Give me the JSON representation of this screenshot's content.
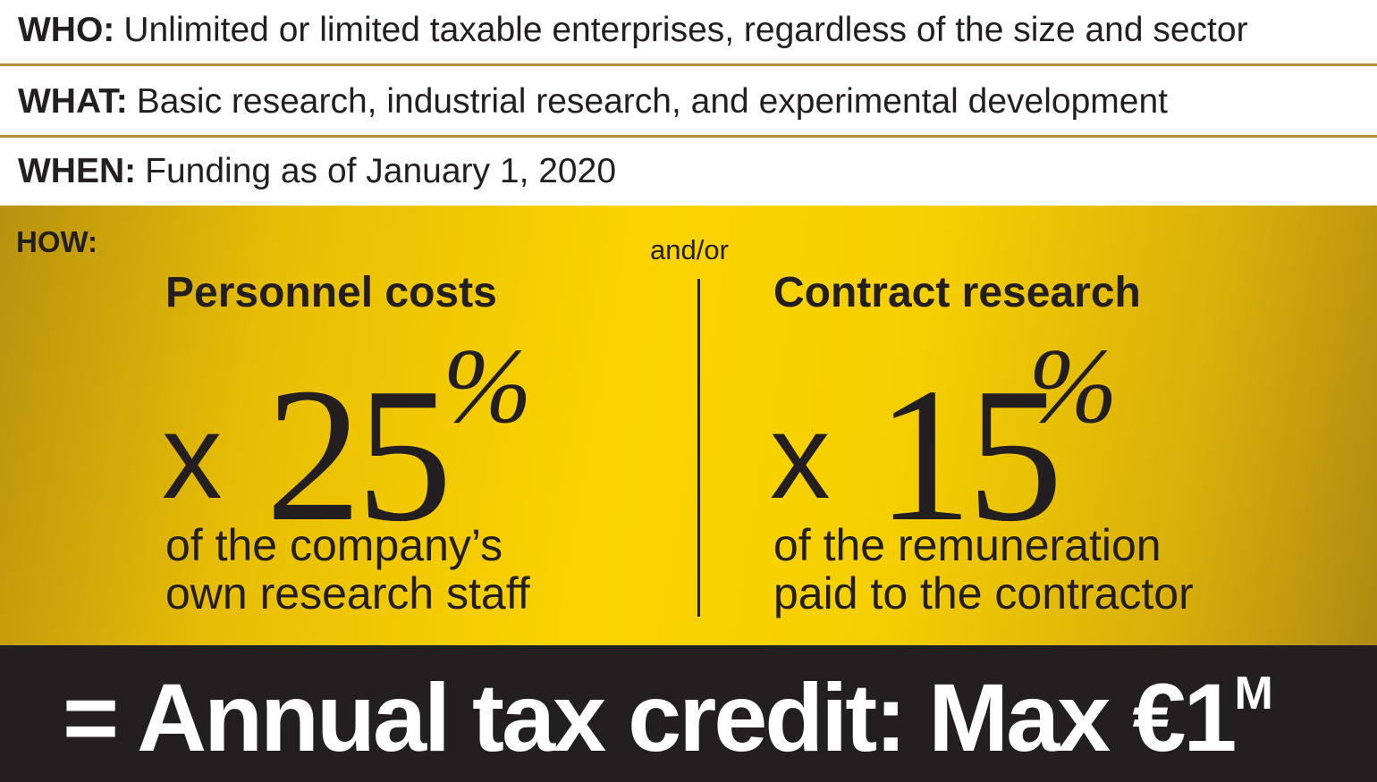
{
  "rows": [
    {
      "label": "WHO:",
      "text": "Unlimited or limited taxable enterprises, regardless of the size and sector"
    },
    {
      "label": "WHAT:",
      "text": "Basic research, industrial research, and experimental development"
    },
    {
      "label": "WHEN:",
      "text": "Funding as of January 1, 2020"
    }
  ],
  "how": {
    "label": "HOW:",
    "connector": "and/or",
    "options": [
      {
        "heading": "Personnel costs",
        "multiplier": "x",
        "rate": "25",
        "unit": "%",
        "description": [
          "of the company’s",
          "own research staff"
        ]
      },
      {
        "heading": "Contract research",
        "multiplier": "x",
        "rate": "15",
        "unit": "%",
        "description": [
          "of the remuneration",
          "paid to the contractor"
        ]
      }
    ]
  },
  "footer": {
    "text": "= Annual tax credit: Max €1",
    "superscript": "M"
  }
}
